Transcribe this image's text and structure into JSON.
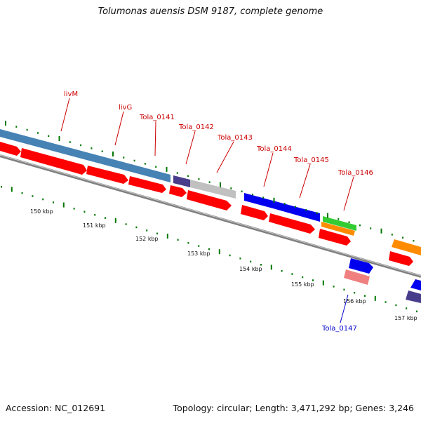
{
  "title": "Tolumonas auensis DSM 9187, complete genome",
  "footer": {
    "accession": "Accession: NC_012691",
    "topology": "Topology: circular; Length: 3,471,292 bp; Genes: 3,246"
  },
  "colors": {
    "backbone": "#808080",
    "gene_top": "#4682b4",
    "cds": "#ff0000",
    "blue": "#0000ee",
    "navy": "#483d8b",
    "gray": "#c0c0c0",
    "green": "#33cc33",
    "orange": "#ff8c00",
    "pink": "#f08080",
    "tick": "#007700",
    "label_red": "#cc0000",
    "label_blue": "#0000cc"
  },
  "scale_labels": [
    "150 kbp",
    "151 kbp",
    "152 kbp",
    "153 kbp",
    "154 kbp",
    "155 kbp",
    "156 kbp",
    "157 kbp"
  ],
  "gene_labels": [
    {
      "text": "livM",
      "color": "red"
    },
    {
      "text": "livG",
      "color": "red"
    },
    {
      "text": "Tola_0141",
      "color": "red"
    },
    {
      "text": "Tola_0142",
      "color": "red"
    },
    {
      "text": "Tola_0143",
      "color": "red"
    },
    {
      "text": "Tola_0144",
      "color": "red"
    },
    {
      "text": "Tola_0145",
      "color": "red"
    },
    {
      "text": "Tola_0146",
      "color": "red"
    },
    {
      "text": "Tola_0147",
      "color": "blue"
    }
  ]
}
